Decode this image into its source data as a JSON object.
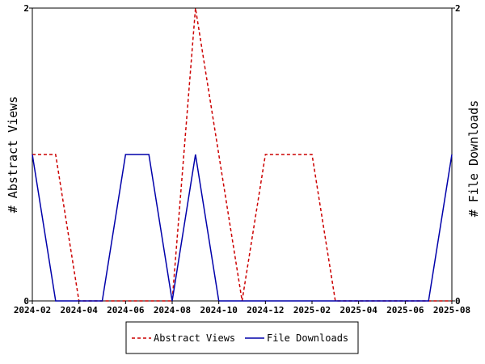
{
  "chart_data": {
    "type": "line",
    "x": [
      "2024-02",
      "2024-03",
      "2024-04",
      "2024-05",
      "2024-06",
      "2024-07",
      "2024-08",
      "2024-09",
      "2024-10",
      "2024-11",
      "2024-12",
      "2025-01",
      "2025-02",
      "2025-03",
      "2025-04",
      "2025-05",
      "2025-06",
      "2025-07",
      "2025-08"
    ],
    "x_tick_labels": [
      "2024-02",
      "2024-04",
      "2024-06",
      "2024-08",
      "2024-10",
      "2024-12",
      "2025-02",
      "2025-04",
      "2025-06",
      "2025-08"
    ],
    "series": [
      {
        "name": "Abstract Views",
        "axis": "left",
        "color": "#cc0000",
        "style": "dashed",
        "values": [
          1,
          1,
          0,
          0,
          0,
          0,
          0,
          2,
          1,
          0,
          1,
          1,
          1,
          0,
          0,
          0,
          0,
          0,
          0
        ]
      },
      {
        "name": "File Downloads",
        "axis": "right",
        "color": "#0000aa",
        "style": "solid",
        "values": [
          1,
          0,
          0,
          0,
          1,
          1,
          0,
          1,
          0,
          0,
          0,
          0,
          0,
          0,
          0,
          0,
          0,
          0,
          1
        ]
      }
    ],
    "ylabel": "# Abstract Views",
    "ylabel_right": "# File Downloads",
    "ylim": [
      0,
      2
    ],
    "ylim_right": [
      0,
      2
    ],
    "y_ticks": [
      "0",
      "2"
    ],
    "y_ticks_right": [
      "0",
      "2"
    ],
    "grid": false,
    "legend_position": "bottom"
  }
}
